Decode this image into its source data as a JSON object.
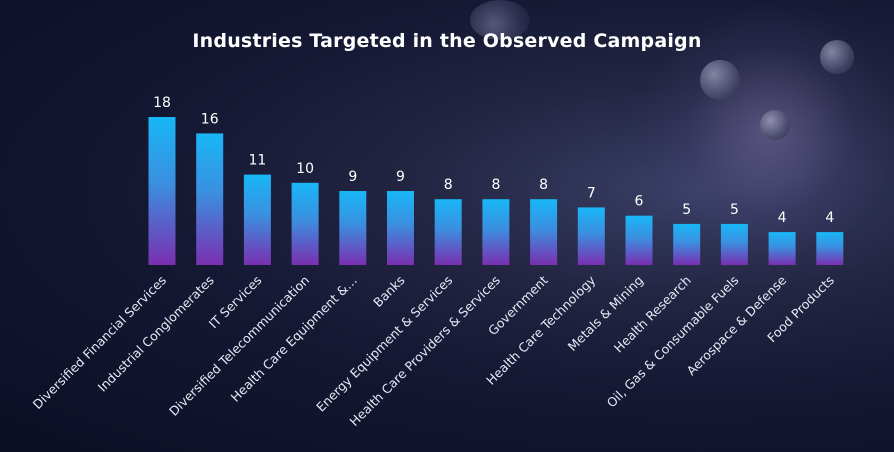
{
  "colors": {
    "bar_top": "#18b7f7",
    "bar_bottom": "#7a2fb0",
    "background": "#141833",
    "text": "#ffffff"
  },
  "chart_data": {
    "type": "bar",
    "title": "Industries Targeted in the Observed Campaign",
    "xlabel": "",
    "ylabel": "",
    "ylim": [
      0,
      18
    ],
    "grid": false,
    "legend": "none",
    "categories": [
      "Diversified Financial Services",
      "Industrial Conglomerates",
      "IT Services",
      "Diversified Telecommunication",
      "Health Care Equipment &…",
      "Banks",
      "Energy Equipment & Services",
      "Health Care Providers & Services",
      "Government",
      "Health Care Technology",
      "Metals & Mining",
      "Health Research",
      "Oil, Gas & Consumable Fuels",
      "Aerospace & Defense",
      "Food Products"
    ],
    "values": [
      18,
      16,
      11,
      10,
      9,
      9,
      8,
      8,
      8,
      7,
      6,
      5,
      5,
      4,
      4
    ]
  }
}
